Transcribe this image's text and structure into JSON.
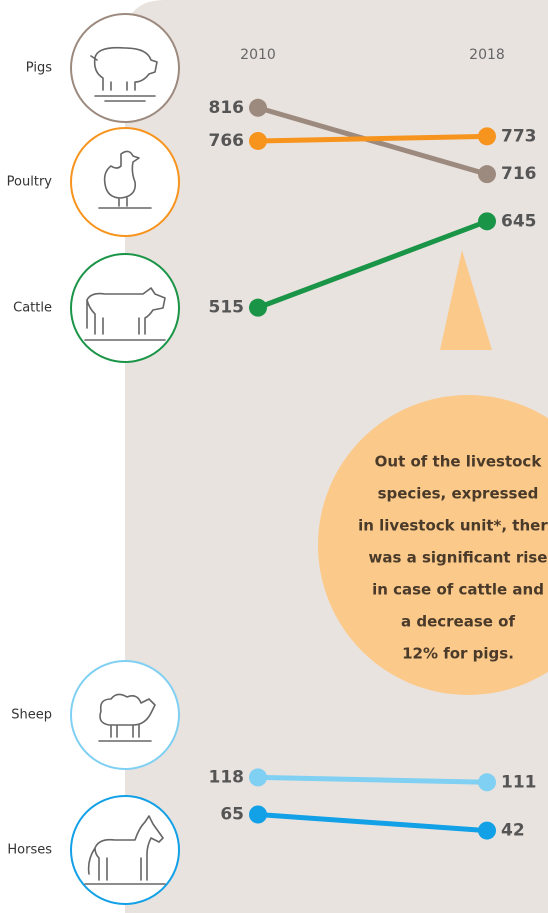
{
  "chart_data": {
    "type": "slope",
    "x": [
      "2010",
      "2018"
    ],
    "series": [
      {
        "name": "Pigs",
        "color": "#9d8a7e",
        "values": [
          816,
          716
        ]
      },
      {
        "name": "Poultry",
        "color": "#f7941d",
        "values": [
          766,
          773
        ]
      },
      {
        "name": "Cattle",
        "color": "#1a9446",
        "values": [
          515,
          645
        ]
      },
      {
        "name": "Sheep",
        "color": "#7fd0f2",
        "values": [
          118,
          111
        ]
      },
      {
        "name": "Horses",
        "color": "#12a0e6",
        "values": [
          65,
          42
        ]
      }
    ]
  },
  "note": [
    "Out of the livestock",
    "species, expressed",
    "in livestock unit*, there",
    "was a significant rise",
    "in case of cattle and",
    "a decrease of",
    "12% for pigs."
  ]
}
